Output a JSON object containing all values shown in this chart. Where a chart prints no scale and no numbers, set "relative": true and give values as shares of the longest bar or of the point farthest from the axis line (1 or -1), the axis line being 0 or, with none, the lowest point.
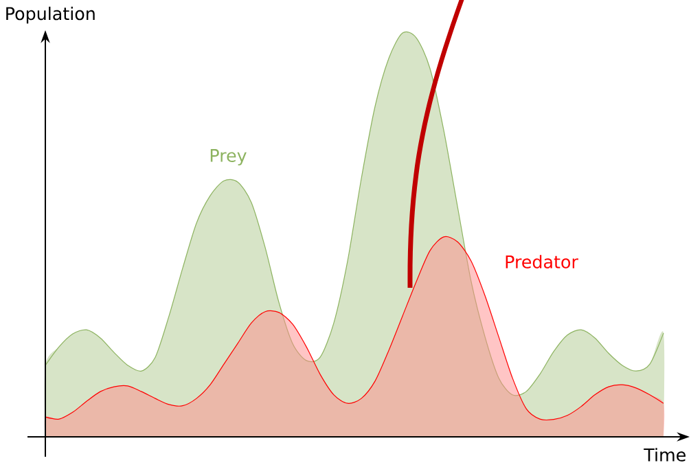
{
  "chart_data": {
    "type": "area",
    "relative": true,
    "xlabel": "Time",
    "ylabel": "Population",
    "categories": [
      null,
      null,
      null,
      null,
      null,
      null,
      null,
      null,
      null,
      null,
      null,
      null,
      null,
      null,
      null,
      null,
      null,
      null,
      null,
      null,
      null,
      null,
      null,
      null,
      null,
      null,
      null,
      null,
      null,
      null,
      null,
      null,
      null,
      null,
      null,
      null,
      null,
      null,
      null,
      null,
      null,
      null,
      null,
      null,
      null,
      null
    ],
    "series": [
      {
        "name": "Prey",
        "color": "#8db360",
        "values": [
          0.177,
          0.223,
          0.255,
          0.265,
          0.245,
          0.209,
          0.177,
          0.163,
          0.197,
          0.299,
          0.418,
          0.529,
          0.597,
          0.634,
          0.631,
          0.58,
          0.469,
          0.333,
          0.231,
          0.189,
          0.197,
          0.282,
          0.435,
          0.639,
          0.818,
          0.937,
          1.0,
          0.988,
          0.912,
          0.759,
          0.571,
          0.384,
          0.248,
          0.146,
          0.104,
          0.112,
          0.155,
          0.211,
          0.252,
          0.265,
          0.245,
          0.207,
          0.177,
          0.163,
          0.18,
          0.257
        ]
      },
      {
        "name": "Predator",
        "color": "#ff0000",
        "values": [
          0.049,
          0.044,
          0.061,
          0.088,
          0.112,
          0.124,
          0.126,
          0.112,
          0.095,
          0.08,
          0.077,
          0.095,
          0.129,
          0.18,
          0.231,
          0.282,
          0.31,
          0.308,
          0.279,
          0.223,
          0.155,
          0.104,
          0.083,
          0.095,
          0.138,
          0.214,
          0.299,
          0.384,
          0.461,
          0.495,
          0.483,
          0.435,
          0.35,
          0.248,
          0.146,
          0.07,
          0.044,
          0.043,
          0.053,
          0.075,
          0.104,
          0.124,
          0.129,
          0.121,
          0.104,
          0.083
        ]
      }
    ]
  }
}
